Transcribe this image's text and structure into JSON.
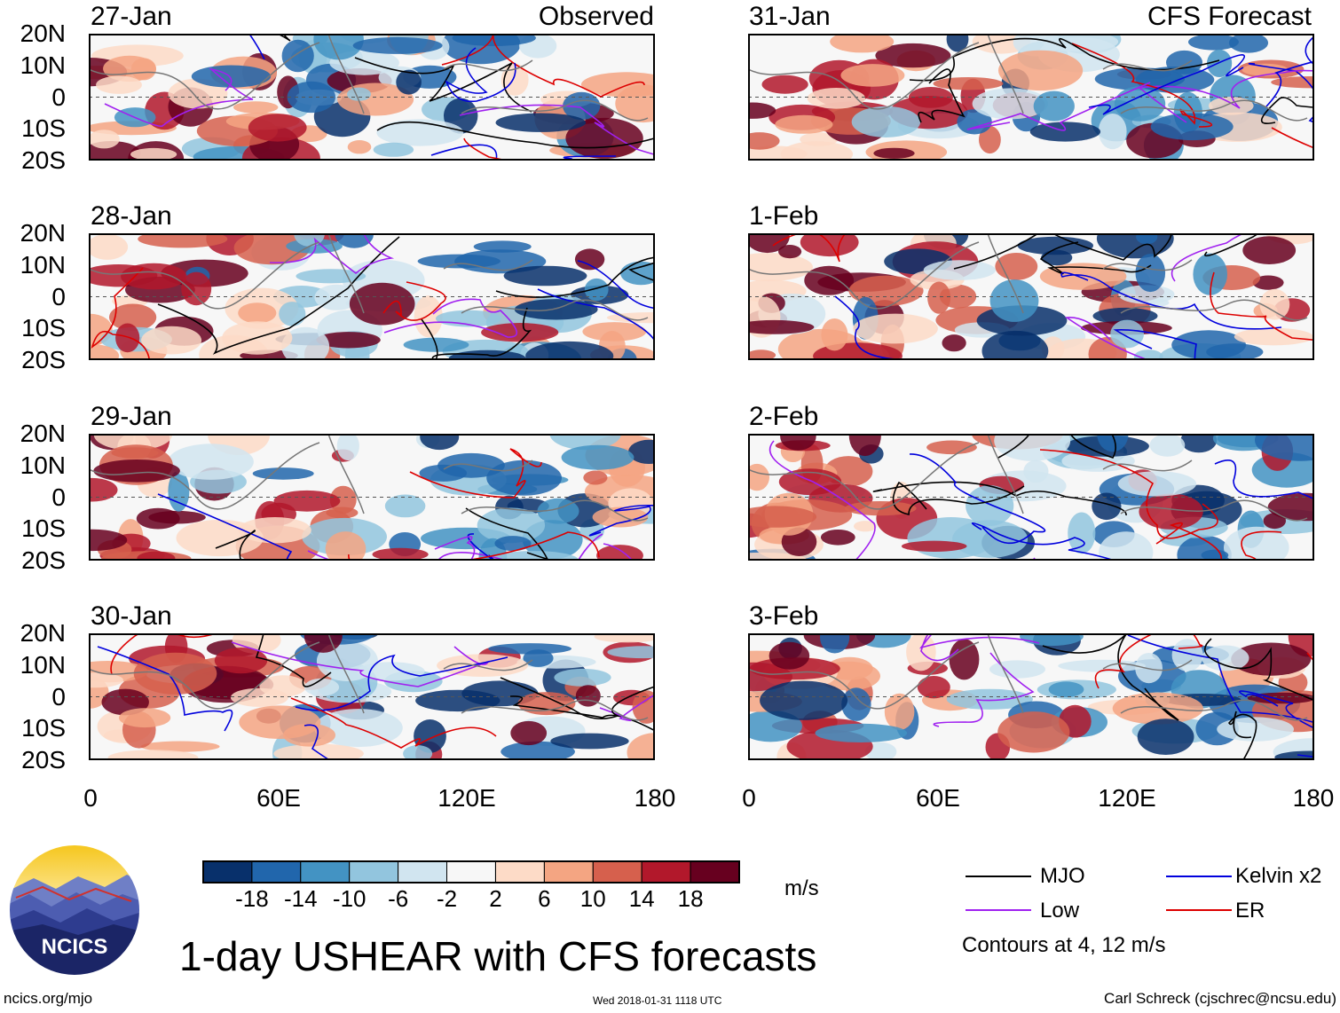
{
  "chart_data": {
    "type": "heatmap",
    "title": "1-day USHEAR with CFS forecasts",
    "units": "m/s",
    "columns": [
      {
        "label": "Observed",
        "panels": [
          "27-Jan",
          "28-Jan",
          "29-Jan",
          "30-Jan"
        ]
      },
      {
        "label": "CFS Forecast",
        "panels": [
          "31-Jan",
          "1-Feb",
          "2-Feb",
          "3-Feb"
        ]
      }
    ],
    "lat_ticks": [
      "20N",
      "10N",
      "0",
      "10S",
      "20S"
    ],
    "lat_range": [
      -20,
      20
    ],
    "lon_ticks": [
      "0",
      "60E",
      "120E",
      "180"
    ],
    "lon_range": [
      0,
      180
    ],
    "colorbar": {
      "ticks": [
        "-18",
        "-14",
        "-10",
        "-6",
        "-2",
        "2",
        "6",
        "10",
        "14",
        "18"
      ],
      "colors": [
        "#08306b",
        "#2166ac",
        "#4393c3",
        "#92c5de",
        "#d1e5f0",
        "#f7f7f7",
        "#fddbc7",
        "#f4a582",
        "#d6604d",
        "#b2182b",
        "#67001f"
      ]
    },
    "contour_legend": [
      {
        "name": "MJO",
        "color": "#000000"
      },
      {
        "name": "Kelvin x2",
        "color": "#0000dd"
      },
      {
        "name": "Low",
        "color": "#a020f0"
      },
      {
        "name": "ER",
        "color": "#dd0000"
      }
    ],
    "contour_note": "Contours at 4, 12 m/s"
  },
  "footer": {
    "logo_text": "NCICS",
    "left": "ncics.org/mjo",
    "center": "Wed 2018-01-31 1118 UTC",
    "right": "Carl Schreck (cjschrec@ncsu.edu)"
  }
}
